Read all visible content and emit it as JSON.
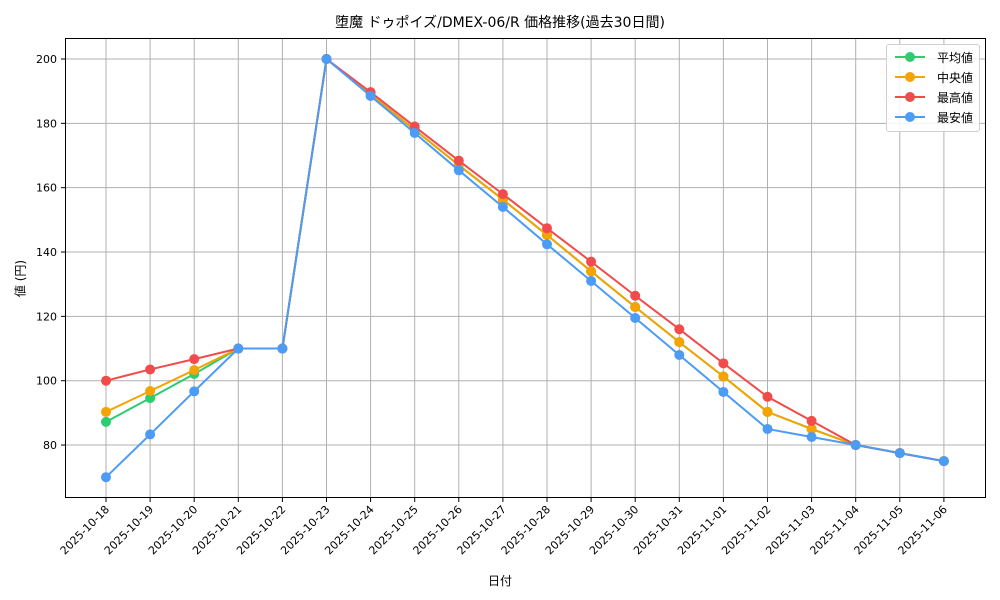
{
  "chart_data": {
    "type": "line",
    "title": "堕魔 ドゥポイズ/DMEX-06/R 価格推移(過去30日間)",
    "xlabel": "日付",
    "ylabel": "値 (円)",
    "ylim": [
      64,
      206
    ],
    "yticks": [
      80,
      100,
      120,
      140,
      160,
      180,
      200
    ],
    "grid": true,
    "legend_position": "upper right",
    "categories": [
      "2025-10-18",
      "2025-10-19",
      "2025-10-20",
      "2025-10-21",
      "2025-10-22",
      "2025-10-23",
      "2025-10-24",
      "2025-10-25",
      "2025-10-26",
      "2025-10-27",
      "2025-10-28",
      "2025-10-29",
      "2025-10-30",
      "2025-10-31",
      "2025-11-01",
      "2025-11-02",
      "2025-11-03",
      "2025-11-04",
      "2025-11-05",
      "2025-11-06"
    ],
    "series": [
      {
        "name": "平均値",
        "color": "#2ecc71",
        "values": [
          87.2,
          94.6,
          102.1,
          110,
          110,
          200,
          189,
          178,
          167,
          156.3,
          145.3,
          134,
          122.9,
          112,
          101.3,
          90.3,
          85,
          80,
          77.5,
          75
        ]
      },
      {
        "name": "中央値",
        "color": "#f5a300",
        "values": [
          90.3,
          96.8,
          103.3,
          110,
          110,
          200,
          189,
          178,
          167,
          156.3,
          145.3,
          134,
          122.9,
          112,
          101.3,
          90.3,
          85,
          80,
          77.5,
          75
        ]
      },
      {
        "name": "最高値",
        "color": "#f24b4b",
        "values": [
          100,
          103.5,
          106.7,
          110,
          110,
          200,
          189.7,
          179,
          168.4,
          158,
          147.4,
          137,
          126.4,
          116,
          105.4,
          95,
          87.5,
          80,
          77.5,
          75
        ]
      },
      {
        "name": "最安値",
        "color": "#4c9bf5",
        "values": [
          70,
          83.3,
          96.7,
          110,
          110,
          200,
          188.5,
          177,
          165.4,
          154,
          142.4,
          131,
          119.5,
          108,
          96.5,
          85,
          82.5,
          80,
          77.5,
          75
        ]
      }
    ]
  },
  "legend": {
    "items": [
      {
        "label": "平均値",
        "color": "#2ecc71"
      },
      {
        "label": "中央値",
        "color": "#f5a300"
      },
      {
        "label": "最高値",
        "color": "#f24b4b"
      },
      {
        "label": "最安値",
        "color": "#4c9bf5"
      }
    ]
  }
}
